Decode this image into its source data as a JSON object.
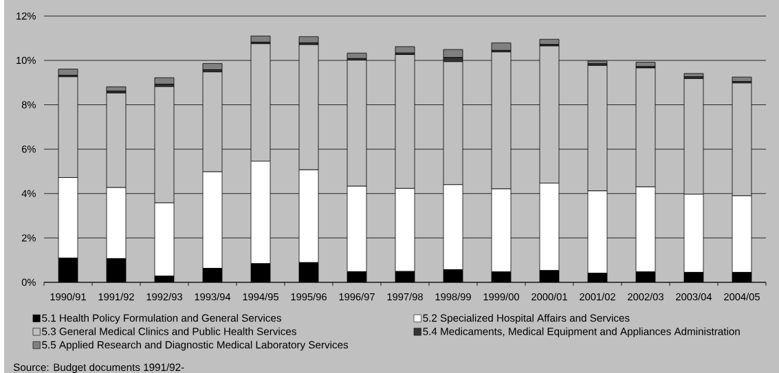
{
  "chart_data": {
    "type": "bar",
    "stacked": true,
    "categories": [
      "1990/91",
      "1991/92",
      "1992/93",
      "1993/94",
      "1994/95",
      "1995/96",
      "1996/97",
      "1997/98",
      "1998/99",
      "1999/00",
      "2000/01",
      "2001/02",
      "2002/03",
      "2003/04",
      "2004/05"
    ],
    "series": [
      {
        "name": "5.1 Health Policy Formulation and General Services",
        "color": "#000000",
        "values": [
          1.09,
          1.07,
          0.28,
          0.63,
          0.84,
          0.89,
          0.48,
          0.49,
          0.57,
          0.47,
          0.53,
          0.41,
          0.47,
          0.45,
          0.45
        ]
      },
      {
        "name": "5.2 Specialized Hospital Affairs and Services",
        "color": "#ffffff",
        "values": [
          3.63,
          3.2,
          3.3,
          4.35,
          4.62,
          4.18,
          3.85,
          3.74,
          3.83,
          3.74,
          3.94,
          3.71,
          3.83,
          3.52,
          3.45
        ]
      },
      {
        "name": "5.3 General Medical Clinics and Public Health Services",
        "color": "#c0c0c0",
        "values": [
          4.54,
          4.26,
          5.24,
          4.5,
          5.29,
          5.64,
          5.68,
          6.03,
          5.54,
          6.17,
          6.18,
          5.65,
          5.36,
          5.21,
          5.08
        ]
      },
      {
        "name": "5.4 Medicaments, Medical Equipment and Appliances Administration",
        "color": "#333333",
        "values": [
          0.07,
          0.09,
          0.11,
          0.1,
          0.07,
          0.08,
          0.07,
          0.07,
          0.19,
          0.07,
          0.07,
          0.08,
          0.06,
          0.08,
          0.07
        ]
      },
      {
        "name": "5.5 Applied Research and Diagnostic Medical Laboratory Services",
        "color": "#808080",
        "values": [
          0.28,
          0.19,
          0.29,
          0.28,
          0.28,
          0.28,
          0.25,
          0.29,
          0.36,
          0.34,
          0.23,
          0.12,
          0.2,
          0.15,
          0.2
        ]
      }
    ],
    "ylim": [
      0,
      12
    ],
    "yticks": [
      {
        "value": 0,
        "label": "0%"
      },
      {
        "value": 2,
        "label": "2%"
      },
      {
        "value": 4,
        "label": "4%"
      },
      {
        "value": 6,
        "label": "6%"
      },
      {
        "value": 8,
        "label": "8%"
      },
      {
        "value": 10,
        "label": "10%"
      },
      {
        "value": 12,
        "label": "12%"
      }
    ],
    "grid": "y",
    "legend": "bottom",
    "annotations": [
      "Source: Budget documents 1991/92-"
    ]
  }
}
